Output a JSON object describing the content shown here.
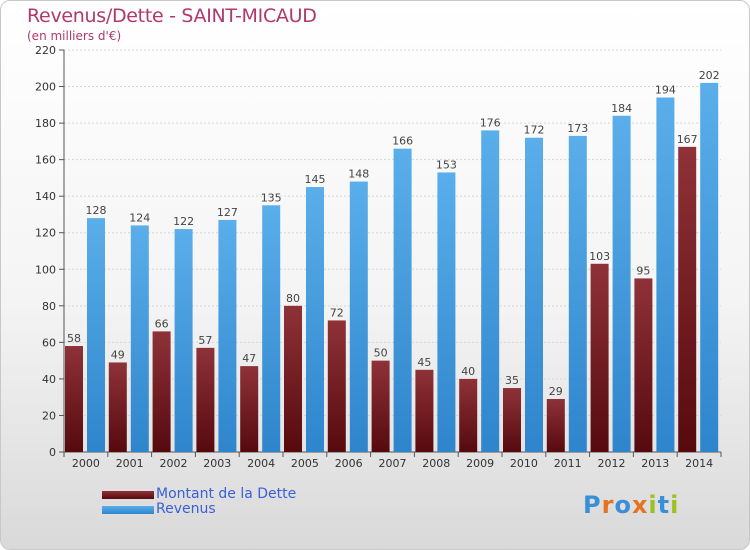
{
  "header": {
    "title": "Revenus/Dette - SAINT-MICAUD",
    "subtitle": "(en milliers d'€)"
  },
  "colors": {
    "dette": "#8a2a30",
    "revenus": "#4fa3e6",
    "title": "#b0386e"
  },
  "chart_data": {
    "type": "bar",
    "title": "Revenus/Dette - SAINT-MICAUD",
    "subtitle": "(en milliers d'€)",
    "categories": [
      "2000",
      "2001",
      "2002",
      "2003",
      "2004",
      "2005",
      "2006",
      "2007",
      "2008",
      "2009",
      "2010",
      "2011",
      "2012",
      "2013",
      "2014"
    ],
    "series": [
      {
        "name": "Montant de la Dette",
        "values": [
          58,
          49,
          66,
          57,
          47,
          80,
          72,
          50,
          45,
          40,
          35,
          29,
          103,
          95,
          167
        ]
      },
      {
        "name": "Revenus",
        "values": [
          128,
          124,
          122,
          127,
          135,
          145,
          148,
          166,
          153,
          176,
          172,
          173,
          184,
          194,
          202
        ]
      }
    ],
    "yticks": [
      0,
      20,
      40,
      60,
      80,
      100,
      120,
      140,
      160,
      180,
      200,
      220
    ],
    "ylim": [
      0,
      220
    ],
    "grid": true,
    "legend": "bottom-left"
  },
  "legend": {
    "items": [
      {
        "label": "Montant de la Dette"
      },
      {
        "label": "Revenus"
      }
    ]
  },
  "logo": {
    "text": "Proxiti"
  }
}
